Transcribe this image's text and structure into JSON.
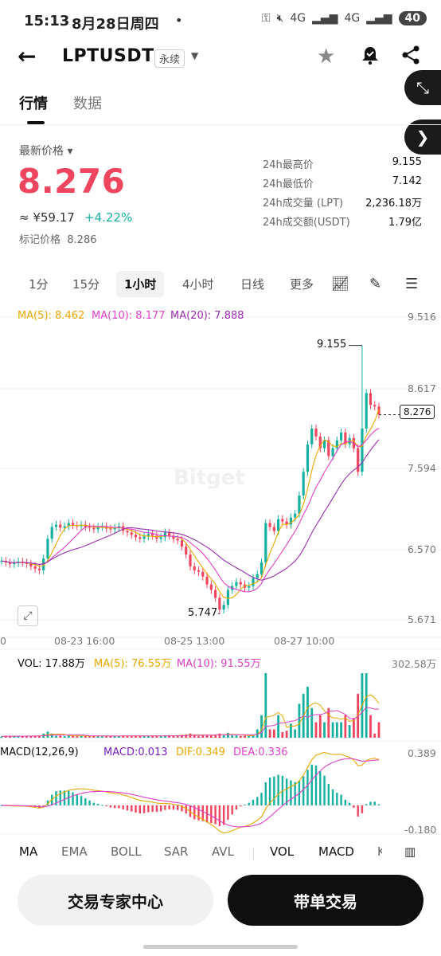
{
  "status_bar": {
    "time": "15:13",
    "date": "8月28日周四",
    "dot": "•",
    "signal1": "4G",
    "signal2": "4G",
    "battery": "40"
  },
  "header": {
    "back_icon": "back-arrow-icon",
    "symbol": "LPTUSDT",
    "contract_type": "永续",
    "star_icon": "star-icon",
    "alert_icon": "bell-alert-icon",
    "share_icon": "share-icon"
  },
  "tabs": [
    {
      "label": "行情",
      "active": true
    },
    {
      "label": "数据",
      "active": false
    }
  ],
  "price_panel": {
    "latest_label": "最新价格 ▾",
    "last_price": "8.276",
    "cny_value": "≈ ¥59.17",
    "change": "+4.22%",
    "mark_label": "标记价格",
    "mark_price": "8.286",
    "price_color": "#f0455e",
    "up_color": "#15b0a0"
  },
  "stats": [
    {
      "label": "24h最高价",
      "value": "9.155"
    },
    {
      "label": "24h最低价",
      "value": "7.142"
    },
    {
      "label": "24h成交量 (LPT)",
      "value": "2,236.18万"
    },
    {
      "label": "24h成交额(USDT)",
      "value": "1.79亿"
    }
  ],
  "intervals": [
    "1分",
    "15分",
    "1小时",
    "4小时",
    "日线",
    "更多"
  ],
  "active_interval": "1小时",
  "chart": {
    "ma_labels": {
      "ma5": "MA(5): 8.462",
      "ma10": "MA(10): 8.177",
      "ma20": "MA(20): 7.888"
    },
    "y_axis": [
      "9.516",
      "8.617",
      "7.594",
      "6.570",
      "5.671"
    ],
    "x_axis": [
      "08-23 16:00",
      "08-25 13:00",
      "08-27 10:00"
    ],
    "x_axis_left": "0",
    "high_label": "9.155",
    "low_label": "5.747",
    "current_price_box": "8.276",
    "watermark": "Bitget",
    "vol_labels": {
      "vol": "VOL: 17.88万",
      "ma5": "MA(5): 76.55万",
      "ma10": "MA(10): 91.55万"
    },
    "vol_max": "302.58万",
    "macd_labels": {
      "title": "MACD(12,26,9)",
      "macd": "MACD:0.013",
      "dif": "DIF:0.349",
      "dea": "DEA:0.336"
    },
    "macd_max": "0.389",
    "macd_min": "-0.180"
  },
  "chart_data": {
    "type": "candlestick",
    "symbol": "LPTUSDT",
    "interval": "1小时",
    "ylim": [
      5.671,
      9.516
    ],
    "high": 9.155,
    "low": 5.747,
    "last": 8.276,
    "ma": {
      "ma5": 8.462,
      "ma10": 8.177,
      "ma20": 7.888
    },
    "volume": {
      "last": "17.88万",
      "ma5": "76.55万",
      "ma10": "91.55万",
      "max": "302.58万"
    },
    "macd": {
      "macd": 0.013,
      "dif": 0.349,
      "dea": 0.336,
      "ylim": [
        -0.18,
        0.389
      ]
    },
    "close_series": [
      6.42,
      6.4,
      6.38,
      6.39,
      6.41,
      6.4,
      6.38,
      6.35,
      6.32,
      6.3,
      6.45,
      6.7,
      6.85,
      6.88,
      6.84,
      6.86,
      6.9,
      6.87,
      6.86,
      6.88,
      6.85,
      6.84,
      6.82,
      6.85,
      6.86,
      6.83,
      6.82,
      6.84,
      6.86,
      6.8,
      6.78,
      6.75,
      6.72,
      6.7,
      6.73,
      6.76,
      6.74,
      6.7,
      6.72,
      6.78,
      6.74,
      6.7,
      6.68,
      6.6,
      6.5,
      6.35,
      6.3,
      6.28,
      6.22,
      6.12,
      6.05,
      5.95,
      5.8,
      5.86,
      6.05,
      6.1,
      6.15,
      6.12,
      6.08,
      6.1,
      6.2,
      6.25,
      6.4,
      6.9,
      6.85,
      6.8,
      6.95,
      6.92,
      6.88,
      6.97,
      7.02,
      7.25,
      7.55,
      7.9,
      8.1,
      8.0,
      7.85,
      7.95,
      7.75,
      7.85,
      7.95,
      8.05,
      7.9,
      7.98,
      7.85,
      7.55,
      8.1,
      8.55,
      8.4,
      8.38,
      8.28
    ]
  },
  "indicator_tabs": [
    "MA",
    "EMA",
    "BOLL",
    "SAR",
    "AVL",
    "VOL",
    "MACD",
    "K"
  ],
  "active_indicators": [
    "MA",
    "VOL",
    "MACD"
  ],
  "buttons": {
    "expert_center": "交易专家中心",
    "copy_trade": "带单交易"
  }
}
